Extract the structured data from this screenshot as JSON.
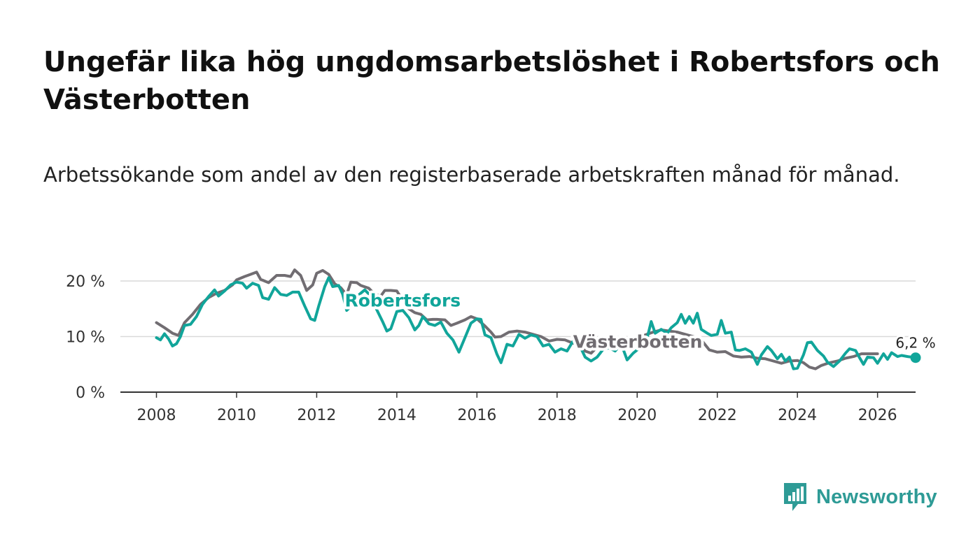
{
  "title": "Ungefär lika hög ungdomsarbetslöshet i Robertsfors och Västerbotten",
  "subtitle": "Arbetssökande som andel av den registerbaserade arbetskraften månad för månad.",
  "brand": {
    "name": "Newsworthy",
    "icon": "newsworthy-logo-icon",
    "color": "#2e9b96"
  },
  "chart_data": {
    "type": "line",
    "title": "Ungefär lika hög ungdomsarbetslöshet i Robertsfors och Västerbotten",
    "xlabel": "",
    "ylabel": "",
    "xlim": [
      2007.1,
      2026.95
    ],
    "ylim": [
      0,
      20
    ],
    "grid": true,
    "y_ticks": [
      0,
      10,
      20
    ],
    "y_tick_labels": [
      "0 %",
      "10 %",
      "20 %"
    ],
    "x_ticks": [
      2008,
      2010,
      2012,
      2014,
      2016,
      2018,
      2020,
      2022,
      2024,
      2026
    ],
    "x_tick_labels": [
      "2008",
      "2010",
      "2012",
      "2014",
      "2016",
      "2018",
      "2020",
      "2022",
      "2024",
      "2026"
    ],
    "end_label": "6,2 %",
    "series": [
      {
        "name": "Västerbotten",
        "color": "#716d72",
        "label": "Västerbotten",
        "points": [
          [
            2008.0,
            12.5
          ],
          [
            2008.2,
            11.6
          ],
          [
            2008.4,
            10.6
          ],
          [
            2008.55,
            10.2
          ],
          [
            2008.7,
            12.5
          ],
          [
            2008.9,
            14.0
          ],
          [
            2009.1,
            15.8
          ],
          [
            2009.3,
            17.0
          ],
          [
            2009.5,
            17.8
          ],
          [
            2009.7,
            18.3
          ],
          [
            2009.9,
            19.3
          ],
          [
            2010.0,
            20.2
          ],
          [
            2010.2,
            20.8
          ],
          [
            2010.35,
            21.2
          ],
          [
            2010.5,
            21.6
          ],
          [
            2010.6,
            20.3
          ],
          [
            2010.8,
            19.7
          ],
          [
            2011.0,
            21.0
          ],
          [
            2011.2,
            21.0
          ],
          [
            2011.35,
            20.8
          ],
          [
            2011.45,
            22.0
          ],
          [
            2011.6,
            21.0
          ],
          [
            2011.75,
            18.3
          ],
          [
            2011.9,
            19.3
          ],
          [
            2012.0,
            21.4
          ],
          [
            2012.15,
            21.9
          ],
          [
            2012.3,
            21.2
          ],
          [
            2012.45,
            19.5
          ],
          [
            2012.6,
            18.8
          ],
          [
            2012.75,
            17.5
          ],
          [
            2012.85,
            19.8
          ],
          [
            2013.0,
            19.7
          ],
          [
            2013.1,
            19.2
          ],
          [
            2013.3,
            18.7
          ],
          [
            2013.45,
            17.6
          ],
          [
            2013.6,
            17.3
          ],
          [
            2013.7,
            18.3
          ],
          [
            2013.85,
            18.3
          ],
          [
            2014.0,
            18.2
          ],
          [
            2014.15,
            16.5
          ],
          [
            2014.3,
            15.0
          ],
          [
            2014.45,
            14.3
          ],
          [
            2014.6,
            14.0
          ],
          [
            2014.75,
            13.0
          ],
          [
            2014.9,
            13.1
          ],
          [
            2015.0,
            13.1
          ],
          [
            2015.2,
            13.0
          ],
          [
            2015.35,
            12.0
          ],
          [
            2015.5,
            12.4
          ],
          [
            2015.7,
            13.0
          ],
          [
            2015.85,
            13.6
          ],
          [
            2016.0,
            13.2
          ],
          [
            2016.2,
            11.9
          ],
          [
            2016.35,
            10.8
          ],
          [
            2016.45,
            9.9
          ],
          [
            2016.6,
            10.0
          ],
          [
            2016.8,
            10.8
          ],
          [
            2017.0,
            11.0
          ],
          [
            2017.2,
            10.8
          ],
          [
            2017.4,
            10.4
          ],
          [
            2017.6,
            10.0
          ],
          [
            2017.8,
            9.2
          ],
          [
            2018.0,
            9.5
          ],
          [
            2018.2,
            9.4
          ],
          [
            2018.4,
            8.8
          ],
          [
            2018.55,
            8.6
          ],
          [
            2018.7,
            7.4
          ],
          [
            2018.85,
            7.0
          ],
          [
            2019.0,
            8.1
          ],
          [
            2019.2,
            8.0
          ],
          [
            2019.4,
            7.8
          ],
          [
            2019.6,
            8.4
          ],
          [
            2019.8,
            8.6
          ],
          [
            2020.0,
            9.2
          ],
          [
            2020.2,
            10.3
          ],
          [
            2020.4,
            10.8
          ],
          [
            2020.6,
            11.2
          ],
          [
            2020.8,
            11.0
          ],
          [
            2021.0,
            10.8
          ],
          [
            2021.2,
            10.4
          ],
          [
            2021.4,
            10.0
          ],
          [
            2021.6,
            9.4
          ],
          [
            2021.8,
            7.6
          ],
          [
            2022.0,
            7.2
          ],
          [
            2022.2,
            7.3
          ],
          [
            2022.4,
            6.5
          ],
          [
            2022.6,
            6.3
          ],
          [
            2022.8,
            6.4
          ],
          [
            2023.0,
            6.1
          ],
          [
            2023.2,
            6.0
          ],
          [
            2023.4,
            5.6
          ],
          [
            2023.6,
            5.2
          ],
          [
            2023.8,
            5.6
          ],
          [
            2024.0,
            5.7
          ],
          [
            2024.15,
            5.3
          ],
          [
            2024.3,
            4.5
          ],
          [
            2024.45,
            4.2
          ],
          [
            2024.6,
            4.8
          ],
          [
            2024.8,
            5.3
          ],
          [
            2025.0,
            5.6
          ],
          [
            2025.2,
            6.1
          ],
          [
            2025.4,
            6.4
          ],
          [
            2025.6,
            6.9
          ],
          [
            2025.8,
            6.9
          ],
          [
            2026.0,
            6.9
          ]
        ]
      },
      {
        "name": "Robertsfors",
        "color": "#11a59a",
        "label": "Robertsfors",
        "points": [
          [
            2008.0,
            9.8
          ],
          [
            2008.1,
            9.4
          ],
          [
            2008.2,
            10.5
          ],
          [
            2008.3,
            9.6
          ],
          [
            2008.4,
            8.3
          ],
          [
            2008.5,
            8.7
          ],
          [
            2008.6,
            10.0
          ],
          [
            2008.7,
            12.0
          ],
          [
            2008.85,
            12.2
          ],
          [
            2009.0,
            13.6
          ],
          [
            2009.15,
            15.8
          ],
          [
            2009.3,
            17.2
          ],
          [
            2009.45,
            18.4
          ],
          [
            2009.55,
            17.3
          ],
          [
            2009.7,
            18.2
          ],
          [
            2009.85,
            19.3
          ],
          [
            2010.0,
            19.8
          ],
          [
            2010.15,
            19.6
          ],
          [
            2010.25,
            18.7
          ],
          [
            2010.4,
            19.6
          ],
          [
            2010.55,
            19.2
          ],
          [
            2010.65,
            17.0
          ],
          [
            2010.8,
            16.7
          ],
          [
            2010.95,
            18.8
          ],
          [
            2011.1,
            17.6
          ],
          [
            2011.25,
            17.4
          ],
          [
            2011.4,
            18.0
          ],
          [
            2011.55,
            18.0
          ],
          [
            2011.7,
            15.5
          ],
          [
            2011.85,
            13.2
          ],
          [
            2011.95,
            12.9
          ],
          [
            2012.05,
            15.5
          ],
          [
            2012.2,
            19.0
          ],
          [
            2012.3,
            20.6
          ],
          [
            2012.4,
            19.0
          ],
          [
            2012.55,
            19.2
          ],
          [
            2012.65,
            17.6
          ],
          [
            2012.75,
            14.7
          ],
          [
            2012.85,
            15.4
          ],
          [
            2013.0,
            17.2
          ],
          [
            2013.2,
            18.4
          ],
          [
            2013.35,
            17.3
          ],
          [
            2013.5,
            14.8
          ],
          [
            2013.65,
            12.6
          ],
          [
            2013.75,
            11.0
          ],
          [
            2013.85,
            11.4
          ],
          [
            2014.0,
            14.5
          ],
          [
            2014.15,
            14.7
          ],
          [
            2014.3,
            13.4
          ],
          [
            2014.45,
            11.2
          ],
          [
            2014.55,
            12.0
          ],
          [
            2014.65,
            13.6
          ],
          [
            2014.8,
            12.3
          ],
          [
            2014.95,
            12.0
          ],
          [
            2015.1,
            12.6
          ],
          [
            2015.25,
            10.6
          ],
          [
            2015.4,
            9.4
          ],
          [
            2015.55,
            7.2
          ],
          [
            2015.7,
            9.8
          ],
          [
            2015.85,
            12.4
          ],
          [
            2016.0,
            13.2
          ],
          [
            2016.1,
            13.1
          ],
          [
            2016.2,
            10.3
          ],
          [
            2016.35,
            9.8
          ],
          [
            2016.5,
            6.8
          ],
          [
            2016.6,
            5.3
          ],
          [
            2016.75,
            8.6
          ],
          [
            2016.9,
            8.3
          ],
          [
            2017.05,
            10.4
          ],
          [
            2017.2,
            9.7
          ],
          [
            2017.35,
            10.3
          ],
          [
            2017.5,
            10.0
          ],
          [
            2017.65,
            8.3
          ],
          [
            2017.8,
            8.6
          ],
          [
            2017.95,
            7.2
          ],
          [
            2018.1,
            7.8
          ],
          [
            2018.25,
            7.4
          ],
          [
            2018.4,
            9.2
          ],
          [
            2018.55,
            8.6
          ],
          [
            2018.7,
            6.3
          ],
          [
            2018.85,
            5.6
          ],
          [
            2019.0,
            6.3
          ],
          [
            2019.15,
            7.7
          ],
          [
            2019.3,
            8.0
          ],
          [
            2019.45,
            7.4
          ],
          [
            2019.6,
            8.7
          ],
          [
            2019.75,
            5.8
          ],
          [
            2019.9,
            7.0
          ],
          [
            2020.0,
            7.6
          ],
          [
            2020.1,
            9.4
          ],
          [
            2020.25,
            9.8
          ],
          [
            2020.35,
            12.7
          ],
          [
            2020.45,
            10.6
          ],
          [
            2020.6,
            11.3
          ],
          [
            2020.75,
            10.6
          ],
          [
            2020.85,
            11.6
          ],
          [
            2021.0,
            12.5
          ],
          [
            2021.1,
            14.0
          ],
          [
            2021.2,
            12.4
          ],
          [
            2021.3,
            13.6
          ],
          [
            2021.4,
            12.4
          ],
          [
            2021.5,
            14.2
          ],
          [
            2021.6,
            11.3
          ],
          [
            2021.75,
            10.6
          ],
          [
            2021.85,
            10.2
          ],
          [
            2022.0,
            10.4
          ],
          [
            2022.1,
            12.9
          ],
          [
            2022.2,
            10.6
          ],
          [
            2022.35,
            10.8
          ],
          [
            2022.45,
            7.6
          ],
          [
            2022.55,
            7.5
          ],
          [
            2022.7,
            7.8
          ],
          [
            2022.85,
            7.2
          ],
          [
            2023.0,
            5.0
          ],
          [
            2023.1,
            6.7
          ],
          [
            2023.25,
            8.2
          ],
          [
            2023.35,
            7.5
          ],
          [
            2023.5,
            6.0
          ],
          [
            2023.6,
            6.8
          ],
          [
            2023.7,
            5.6
          ],
          [
            2023.8,
            6.3
          ],
          [
            2023.9,
            4.2
          ],
          [
            2024.0,
            4.3
          ],
          [
            2024.15,
            6.7
          ],
          [
            2024.25,
            8.9
          ],
          [
            2024.35,
            9.0
          ],
          [
            2024.5,
            7.5
          ],
          [
            2024.65,
            6.5
          ],
          [
            2024.75,
            5.4
          ],
          [
            2024.9,
            4.6
          ],
          [
            2025.05,
            5.6
          ],
          [
            2025.2,
            7.0
          ],
          [
            2025.3,
            7.8
          ],
          [
            2025.45,
            7.5
          ],
          [
            2025.55,
            6.2
          ],
          [
            2025.65,
            5.0
          ],
          [
            2025.75,
            6.3
          ],
          [
            2025.9,
            6.2
          ],
          [
            2026.0,
            5.2
          ],
          [
            2026.15,
            6.9
          ],
          [
            2026.25,
            5.9
          ],
          [
            2026.35,
            7.1
          ],
          [
            2026.5,
            6.4
          ],
          [
            2026.6,
            6.6
          ],
          [
            2026.75,
            6.4
          ],
          [
            2026.95,
            6.2
          ]
        ]
      }
    ]
  }
}
